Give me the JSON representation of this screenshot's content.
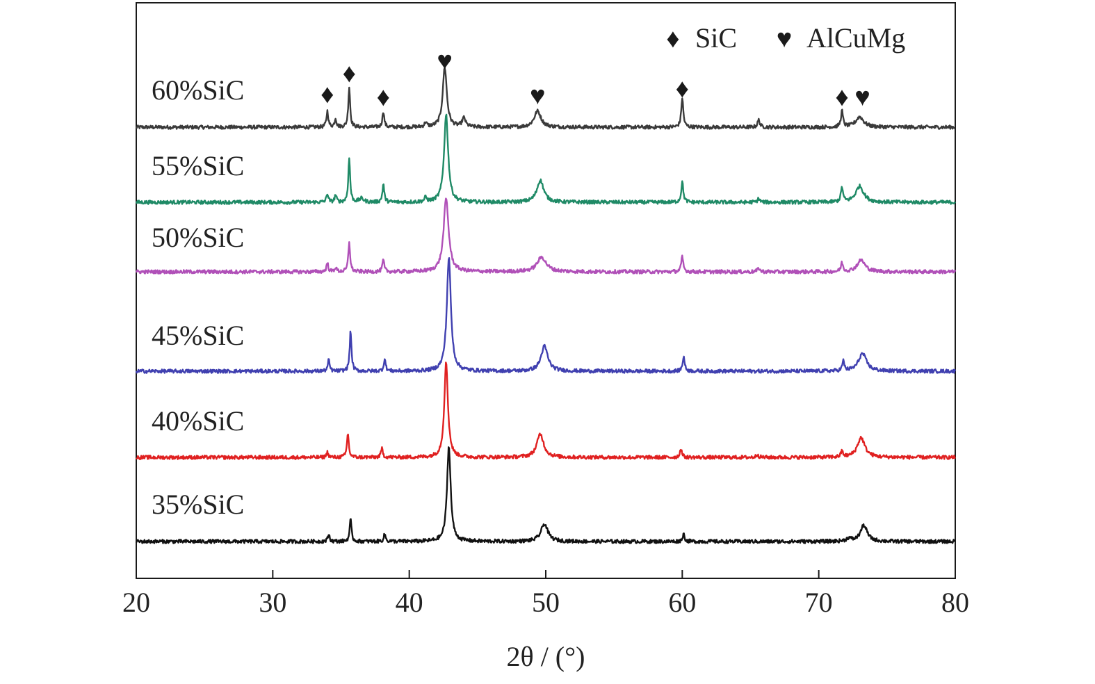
{
  "chart_data": {
    "type": "line",
    "xlabel": "2θ / (°)",
    "ylabel": "",
    "xlim": [
      20,
      80
    ],
    "xticks": [
      20,
      30,
      40,
      50,
      60,
      70,
      80
    ],
    "grid": false,
    "legend": {
      "position": "top-right",
      "entries": [
        {
          "symbol": "♦",
          "symbol_name": "diamond-icon",
          "label": "SiC"
        },
        {
          "symbol": "♥",
          "symbol_name": "heart-icon",
          "label": "AlCuMg"
        }
      ]
    },
    "peak_markers": [
      {
        "x": 34.0,
        "symbol": "♦",
        "phase": "SiC"
      },
      {
        "x": 35.6,
        "symbol": "♦",
        "phase": "SiC"
      },
      {
        "x": 38.1,
        "symbol": "♦",
        "phase": "SiC"
      },
      {
        "x": 42.6,
        "symbol": "♥",
        "phase": "AlCuMg"
      },
      {
        "x": 49.4,
        "symbol": "♥",
        "phase": "AlCuMg"
      },
      {
        "x": 60.0,
        "symbol": "♦",
        "phase": "SiC"
      },
      {
        "x": 71.7,
        "symbol": "♦",
        "phase": "SiC"
      },
      {
        "x": 73.2,
        "symbol": "♥",
        "phase": "AlCuMg"
      }
    ],
    "series": [
      {
        "name": "60%SiC",
        "color": "#3a3a3a",
        "peaks": [
          {
            "x": 34.0,
            "h": 0.22,
            "w": 0.08
          },
          {
            "x": 34.6,
            "h": 0.12,
            "w": 0.08
          },
          {
            "x": 35.6,
            "h": 0.55,
            "w": 0.08
          },
          {
            "x": 38.1,
            "h": 0.22,
            "w": 0.08
          },
          {
            "x": 41.2,
            "h": 0.06,
            "w": 0.1
          },
          {
            "x": 42.6,
            "h": 0.82,
            "w": 0.18
          },
          {
            "x": 44.0,
            "h": 0.12,
            "w": 0.15
          },
          {
            "x": 49.4,
            "h": 0.22,
            "w": 0.3
          },
          {
            "x": 60.0,
            "h": 0.4,
            "w": 0.09
          },
          {
            "x": 65.6,
            "h": 0.1,
            "w": 0.1
          },
          {
            "x": 71.7,
            "h": 0.22,
            "w": 0.09
          },
          {
            "x": 73.0,
            "h": 0.14,
            "w": 0.35
          }
        ]
      },
      {
        "name": "55%SiC",
        "color": "#1f8a66",
        "peaks": [
          {
            "x": 34.0,
            "h": 0.12,
            "w": 0.08
          },
          {
            "x": 34.6,
            "h": 0.1,
            "w": 0.08
          },
          {
            "x": 35.6,
            "h": 0.6,
            "w": 0.08
          },
          {
            "x": 36.5,
            "h": 0.05,
            "w": 0.2
          },
          {
            "x": 38.1,
            "h": 0.25,
            "w": 0.08
          },
          {
            "x": 41.2,
            "h": 0.06,
            "w": 0.1
          },
          {
            "x": 42.7,
            "h": 1.2,
            "w": 0.18
          },
          {
            "x": 49.6,
            "h": 0.3,
            "w": 0.3
          },
          {
            "x": 60.0,
            "h": 0.28,
            "w": 0.09
          },
          {
            "x": 65.6,
            "h": 0.05,
            "w": 0.1
          },
          {
            "x": 71.7,
            "h": 0.2,
            "w": 0.09
          },
          {
            "x": 73.0,
            "h": 0.22,
            "w": 0.35
          }
        ]
      },
      {
        "name": "50%SiC",
        "color": "#b050b8",
        "peaks": [
          {
            "x": 34.0,
            "h": 0.12,
            "w": 0.08
          },
          {
            "x": 34.6,
            "h": 0.06,
            "w": 0.08
          },
          {
            "x": 35.6,
            "h": 0.4,
            "w": 0.08
          },
          {
            "x": 38.1,
            "h": 0.16,
            "w": 0.08
          },
          {
            "x": 42.7,
            "h": 1.0,
            "w": 0.22
          },
          {
            "x": 49.7,
            "h": 0.2,
            "w": 0.4
          },
          {
            "x": 60.0,
            "h": 0.2,
            "w": 0.09
          },
          {
            "x": 65.6,
            "h": 0.05,
            "w": 0.1
          },
          {
            "x": 71.7,
            "h": 0.12,
            "w": 0.09
          },
          {
            "x": 73.1,
            "h": 0.16,
            "w": 0.35
          }
        ]
      },
      {
        "name": "45%SiC",
        "color": "#4040b0",
        "peaks": [
          {
            "x": 34.1,
            "h": 0.15,
            "w": 0.08
          },
          {
            "x": 35.7,
            "h": 0.55,
            "w": 0.08
          },
          {
            "x": 38.2,
            "h": 0.17,
            "w": 0.08
          },
          {
            "x": 42.9,
            "h": 1.55,
            "w": 0.18
          },
          {
            "x": 49.9,
            "h": 0.34,
            "w": 0.3
          },
          {
            "x": 60.1,
            "h": 0.2,
            "w": 0.09
          },
          {
            "x": 71.8,
            "h": 0.13,
            "w": 0.09
          },
          {
            "x": 73.2,
            "h": 0.24,
            "w": 0.35
          }
        ]
      },
      {
        "name": "40%SiC",
        "color": "#e02020",
        "peaks": [
          {
            "x": 34.0,
            "h": 0.07,
            "w": 0.08
          },
          {
            "x": 35.5,
            "h": 0.33,
            "w": 0.08
          },
          {
            "x": 38.0,
            "h": 0.12,
            "w": 0.08
          },
          {
            "x": 42.7,
            "h": 1.3,
            "w": 0.16
          },
          {
            "x": 49.6,
            "h": 0.32,
            "w": 0.3
          },
          {
            "x": 59.9,
            "h": 0.12,
            "w": 0.09
          },
          {
            "x": 65.5,
            "h": 0.04,
            "w": 0.1
          },
          {
            "x": 71.7,
            "h": 0.08,
            "w": 0.09
          },
          {
            "x": 73.1,
            "h": 0.27,
            "w": 0.33
          }
        ]
      },
      {
        "name": "35%SiC",
        "color": "#111111",
        "peaks": [
          {
            "x": 34.1,
            "h": 0.1,
            "w": 0.08
          },
          {
            "x": 35.7,
            "h": 0.3,
            "w": 0.08
          },
          {
            "x": 38.2,
            "h": 0.1,
            "w": 0.08
          },
          {
            "x": 42.9,
            "h": 1.3,
            "w": 0.16
          },
          {
            "x": 49.9,
            "h": 0.24,
            "w": 0.3
          },
          {
            "x": 60.1,
            "h": 0.1,
            "w": 0.09
          },
          {
            "x": 72.2,
            "h": 0.04,
            "w": 0.2
          },
          {
            "x": 73.3,
            "h": 0.22,
            "w": 0.3
          }
        ]
      }
    ]
  }
}
